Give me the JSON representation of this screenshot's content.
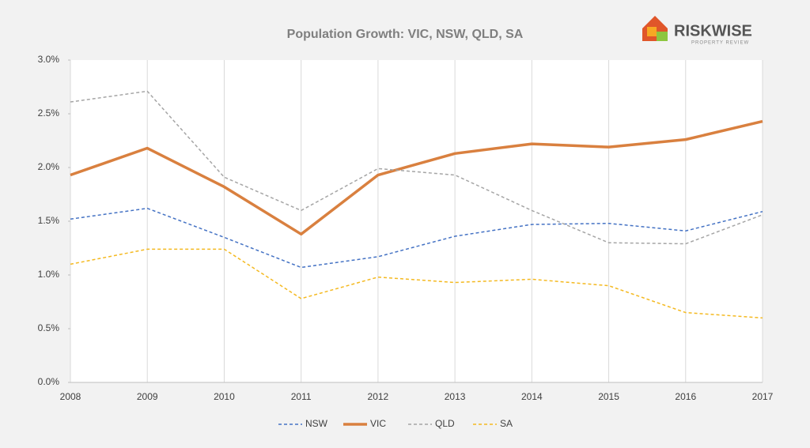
{
  "logo": {
    "name": "RISKWISE",
    "tagline": "PROPERTY REVIEW"
  },
  "chart_data": {
    "type": "line",
    "title": "Population Growth: VIC, NSW, QLD, SA",
    "x": [
      2008,
      2009,
      2010,
      2011,
      2012,
      2013,
      2014,
      2015,
      2016,
      2017
    ],
    "xlim": [
      2008,
      2017
    ],
    "xticks": [
      2008,
      2009,
      2010,
      2011,
      2012,
      2013,
      2014,
      2015,
      2016,
      2017
    ],
    "ylim": [
      0,
      3
    ],
    "yticks": [
      {
        "value": 0,
        "label": "0.0%"
      },
      {
        "value": 0.5,
        "label": "0.5%"
      },
      {
        "value": 1,
        "label": "1.0%"
      },
      {
        "value": 1.5,
        "label": "1.5%"
      },
      {
        "value": 2,
        "label": "2.0%"
      },
      {
        "value": 2.5,
        "label": "2.5%"
      },
      {
        "value": 3,
        "label": "3.0%"
      }
    ],
    "grid": "x",
    "legend": "bottom",
    "series": [
      {
        "name": "NSW",
        "color": "#4472c4",
        "line_style": "dashed",
        "values": [
          1.52,
          1.62,
          1.35,
          1.07,
          1.17,
          1.36,
          1.47,
          1.48,
          1.41,
          1.59
        ]
      },
      {
        "name": "VIC",
        "color": "#d9803f",
        "line_style": "solid",
        "values": [
          1.93,
          2.18,
          1.82,
          1.38,
          1.93,
          2.13,
          2.22,
          2.19,
          2.26,
          2.43
        ]
      },
      {
        "name": "QLD",
        "color": "#a5a5a5",
        "line_style": "dashed",
        "values": [
          2.61,
          2.71,
          1.91,
          1.6,
          1.99,
          1.93,
          1.6,
          1.3,
          1.29,
          1.56
        ]
      },
      {
        "name": "SA",
        "color": "#f4b920",
        "line_style": "dashed",
        "values": [
          1.1,
          1.24,
          1.24,
          0.78,
          0.98,
          0.93,
          0.96,
          0.9,
          0.65,
          0.6
        ]
      }
    ]
  }
}
